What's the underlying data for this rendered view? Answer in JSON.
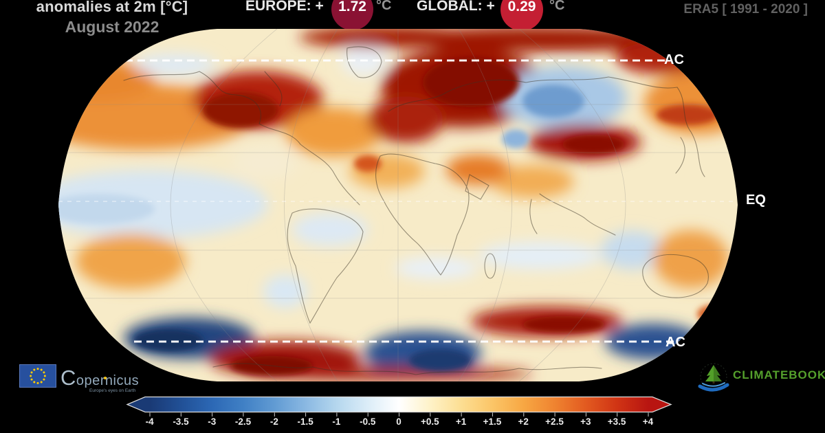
{
  "header": {
    "title": "anomalies at 2m [°C]",
    "subtitle": "August 2022",
    "europe": {
      "label": "EUROPE: +",
      "value": "1.72",
      "unit": "°C"
    },
    "global": {
      "label": "GLOBAL: +",
      "value": "0.29",
      "unit": "°C"
    },
    "dataset": "ERA5 [ 1991 - 2020 ]"
  },
  "map_labels": {
    "arctic_circle": "AC",
    "equator": "EQ",
    "antarctic_circle": "AC"
  },
  "colorbar": {
    "ticks": [
      "-4",
      "-3.5",
      "-3",
      "-2.5",
      "-2",
      "-1.5",
      "-1",
      "-0.5",
      "0",
      "+0.5",
      "+1",
      "+1.5",
      "+2",
      "+2.5",
      "+3",
      "+3.5",
      "+4"
    ]
  },
  "footer": {
    "copernicus_name": "Copernicus",
    "copernicus_tagline": "Europe's eyes on Earth",
    "climatebook": "CLIMATEBOOK"
  },
  "colors": {
    "europe_badge": "#8a1233",
    "global_badge": "#c41f33",
    "climatebook_green": "#55a02c",
    "eu_flag_blue": "#27509e",
    "scale_negative_end": "#1a3a75",
    "scale_zero": "#ffffff",
    "scale_positive_end": "#b81511"
  },
  "chart_data": {
    "type": "heatmap",
    "title": "anomalies at 2m [°C]",
    "period": "August 2022",
    "dataset": "ERA5",
    "reference_period": "1991 - 2020",
    "units": "°C",
    "scale_range": [
      -4,
      4
    ],
    "scale_ticks": [
      -4,
      -3.5,
      -3,
      -2.5,
      -2,
      -1.5,
      -1,
      -0.5,
      0,
      0.5,
      1,
      1.5,
      2,
      2.5,
      3,
      3.5,
      4
    ],
    "legend_position": "bottom",
    "projection": "robinson-world-map",
    "headline_values": {
      "europe_anomaly_c": 1.72,
      "global_anomaly_c": 0.29
    },
    "annotated_latitudes": [
      "Arctic Circle (AC)",
      "Equator (EQ)",
      "Antarctic Circle (AC)"
    ],
    "notable_anomalies": [
      {
        "region": "Western/Central North America",
        "anomaly_c": "+2 to +4"
      },
      {
        "region": "Greenland margins",
        "anomaly_c": "+3 to +4"
      },
      {
        "region": "Northwestern Siberia / Barents region",
        "anomaly_c": "+3 to +4"
      },
      {
        "region": "Europe",
        "anomaly_c": "+1 to +3"
      },
      {
        "region": "Central Siberia",
        "anomaly_c": "-1 to -2"
      },
      {
        "region": "Mongolia / Northern China",
        "anomaly_c": "+3 to +4"
      },
      {
        "region": "Middle East / Caspian",
        "anomaly_c": "+1.5 to +3"
      },
      {
        "region": "North Pacific bands",
        "anomaly_c": "+1 to +3"
      },
      {
        "region": "Equatorial Eastern Pacific (La Nina tongue)",
        "anomaly_c": "-0.5 to -1.5"
      },
      {
        "region": "Western Australia interior/offshore",
        "anomaly_c": "-0.5 to -1.5"
      },
      {
        "region": "Southern Ocean / Antarctic coast",
        "anomaly_c": "alternating -3.5 to +4"
      }
    ]
  }
}
